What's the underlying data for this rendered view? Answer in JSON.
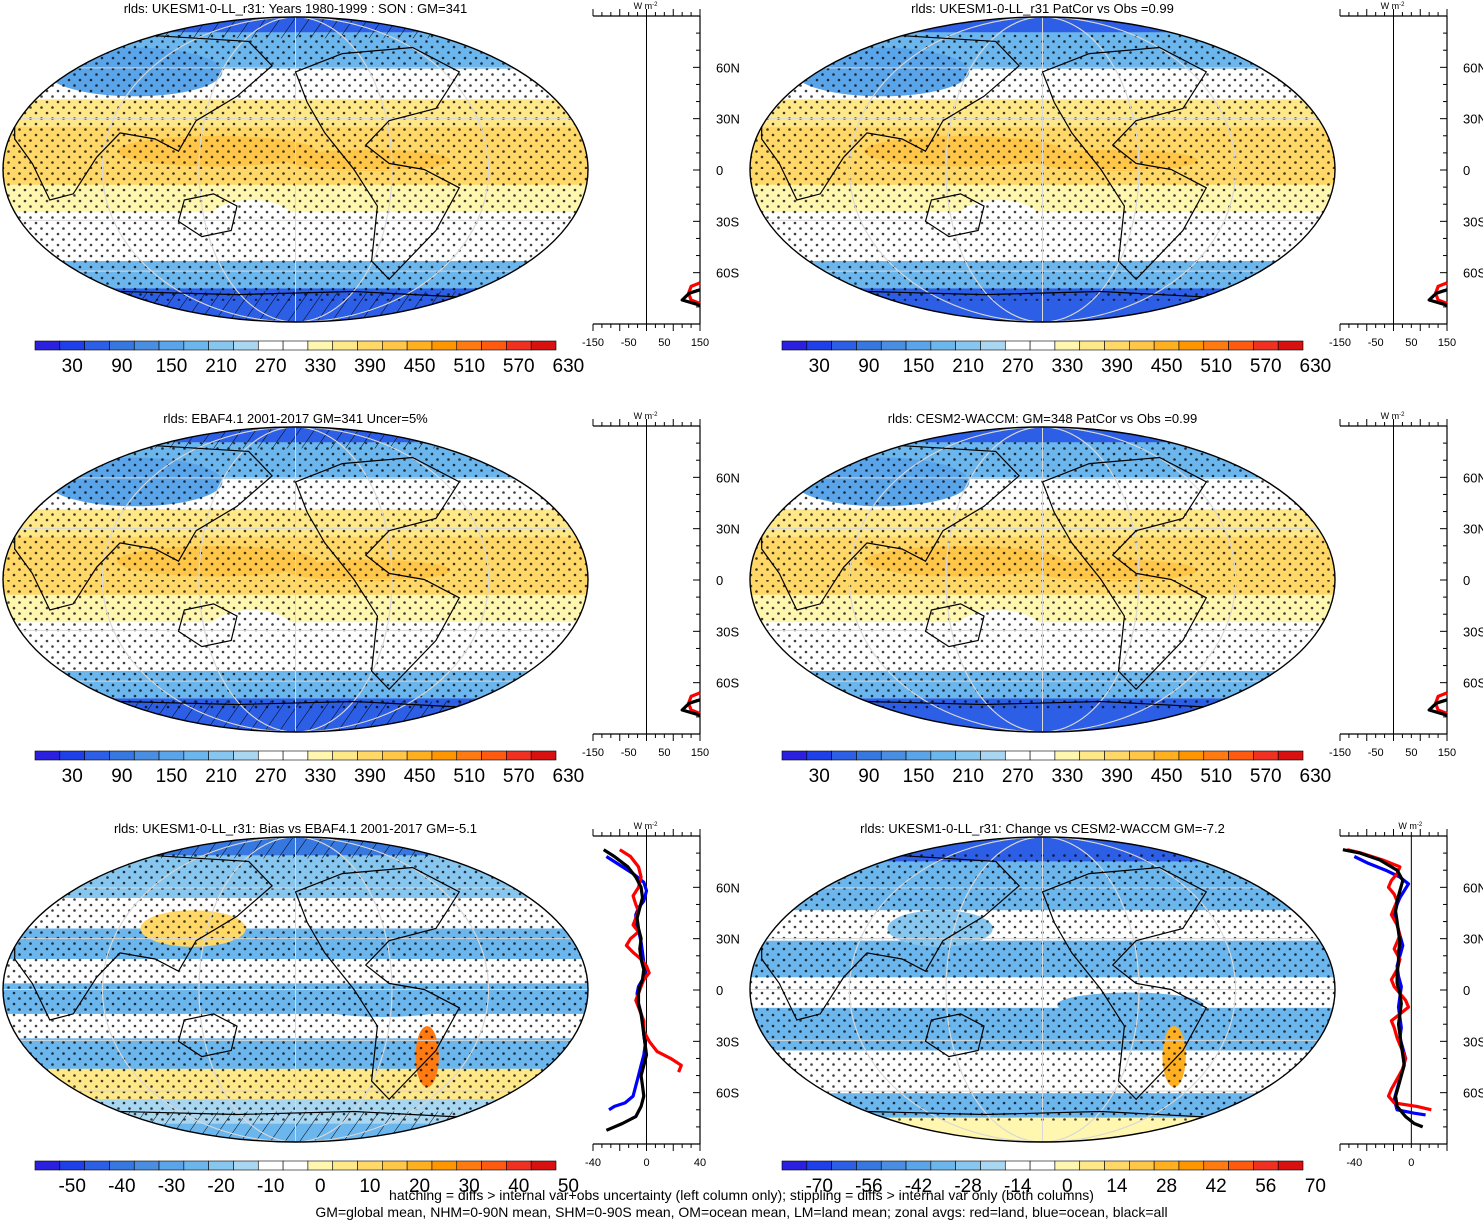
{
  "colors": {
    "full": [
      "#2b1fe0",
      "#1f3fe8",
      "#2d5fe6",
      "#3777e0",
      "#4a8ee2",
      "#5aa4ea",
      "#6cb6ee",
      "#87c6ee",
      "#a9d6f0",
      "#ffffff",
      "#ffffff",
      "#fff6b0",
      "#ffe888",
      "#ffd868",
      "#ffc648",
      "#ffb020",
      "#ff9600",
      "#ff7a10",
      "#ff5a10",
      "#f03020",
      "#d81010"
    ],
    "diff": [
      "#2b1fe0",
      "#1f3fe8",
      "#2d5fe6",
      "#3777e0",
      "#4a8ee2",
      "#5aa4ea",
      "#6cb6ee",
      "#87c6ee",
      "#a9d6f0",
      "#ffffff",
      "#ffffff",
      "#fff6b0",
      "#ffe888",
      "#ffd868",
      "#ffc648",
      "#ffb020",
      "#ff9600",
      "#ff7a10",
      "#ff5a10",
      "#f03020",
      "#d81010"
    ],
    "land": "#ff0000",
    "ocean": "#0000ff",
    "all": "#000000"
  },
  "lat_ticks": [
    "60N",
    "30N",
    "0",
    "30S",
    "60S"
  ],
  "unit_label": "W m",
  "unit_sup": "-2",
  "footnote": [
    "hatching = diffs > internal var+obs uncertainty (left column only); stippling = diffs > internal var only (both columns)",
    "GM=global mean, NHM=0-90N mean, SHM=0-90S mean, OM=ocean mean, LM=land mean; zonal avgs: red=land, blue=ocean, black=all"
  ],
  "chart_data": [
    {
      "type": "heatmap",
      "title": "rlds: UKESM1-0-LL_r31: Years 1980-1999 : SON : GM=341",
      "field": "full",
      "colorbar_labels": [
        "30",
        "90",
        "150",
        "210",
        "270",
        "330",
        "390",
        "450",
        "510",
        "570",
        "630"
      ],
      "profile_xticks": [
        "-150",
        "-50",
        "50",
        "150"
      ],
      "profile_xlim": [
        -150,
        150
      ],
      "profile_lines": [
        {
          "series": "land",
          "points": [
            [
              150,
              -66
            ],
            [
              125,
              -68
            ],
            [
              118,
              -72
            ],
            [
              125,
              -76
            ],
            [
              150,
              -78
            ]
          ]
        },
        {
          "series": "all",
          "points": [
            [
              150,
              -70
            ],
            [
              120,
              -72
            ],
            [
              100,
              -76
            ],
            [
              150,
              -79
            ]
          ]
        }
      ]
    },
    {
      "type": "heatmap",
      "title": "rlds: UKESM1-0-LL_r31 PatCor vs Obs =0.99",
      "field": "full",
      "colorbar_labels": [
        "30",
        "90",
        "150",
        "210",
        "270",
        "330",
        "390",
        "450",
        "510",
        "570",
        "630"
      ],
      "profile_xticks": [
        "-150",
        "-50",
        "50",
        "150"
      ],
      "profile_xlim": [
        -150,
        150
      ],
      "profile_lines": [
        {
          "series": "land",
          "points": [
            [
              150,
              -66
            ],
            [
              125,
              -68
            ],
            [
              118,
              -72
            ],
            [
              125,
              -76
            ],
            [
              150,
              -78
            ]
          ]
        },
        {
          "series": "all",
          "points": [
            [
              150,
              -70
            ],
            [
              120,
              -72
            ],
            [
              100,
              -76
            ],
            [
              150,
              -79
            ]
          ]
        }
      ]
    },
    {
      "type": "heatmap",
      "title": "rlds: EBAF4.1 2001-2017 GM=341 Uncer=5%",
      "field": "full",
      "colorbar_labels": [
        "30",
        "90",
        "150",
        "210",
        "270",
        "330",
        "390",
        "450",
        "510",
        "570",
        "630"
      ],
      "profile_xticks": [
        "-150",
        "-50",
        "50",
        "150"
      ],
      "profile_xlim": [
        -150,
        150
      ],
      "profile_lines": [
        {
          "series": "land",
          "points": [
            [
              150,
              -66
            ],
            [
              125,
              -68
            ],
            [
              118,
              -72
            ],
            [
              125,
              -76
            ],
            [
              150,
              -78
            ]
          ]
        },
        {
          "series": "all",
          "points": [
            [
              150,
              -70
            ],
            [
              120,
              -72
            ],
            [
              100,
              -76
            ],
            [
              150,
              -79
            ]
          ]
        }
      ]
    },
    {
      "type": "heatmap",
      "title": "rlds: CESM2-WACCM: GM=348 PatCor vs Obs =0.99",
      "field": "full",
      "colorbar_labels": [
        "30",
        "90",
        "150",
        "210",
        "270",
        "330",
        "390",
        "450",
        "510",
        "570",
        "630"
      ],
      "profile_xticks": [
        "-150",
        "-50",
        "50",
        "150"
      ],
      "profile_xlim": [
        -150,
        150
      ],
      "profile_lines": [
        {
          "series": "land",
          "points": [
            [
              150,
              -66
            ],
            [
              125,
              -68
            ],
            [
              118,
              -72
            ],
            [
              125,
              -76
            ],
            [
              150,
              -78
            ]
          ]
        },
        {
          "series": "all",
          "points": [
            [
              150,
              -70
            ],
            [
              120,
              -72
            ],
            [
              100,
              -76
            ],
            [
              150,
              -79
            ]
          ]
        }
      ]
    },
    {
      "type": "heatmap",
      "title": "rlds: UKESM1-0-LL_r31: Bias vs EBAF4.1 2001-2017  GM=-5.1",
      "field": "diff",
      "colorbar_labels": [
        "-50",
        "-40",
        "-30",
        "-20",
        "-10",
        "0",
        "10",
        "20",
        "30",
        "40",
        "50"
      ],
      "profile_xticks": [
        "-40",
        "0",
        "40"
      ],
      "profile_xlim": [
        -40,
        40
      ],
      "profile_lines": [
        {
          "series": "ocean",
          "points": [
            [
              -30,
              78
            ],
            [
              -22,
              74
            ],
            [
              -10,
              68
            ],
            [
              -2,
              63
            ],
            [
              0,
              58
            ],
            [
              -2,
              52
            ],
            [
              -6,
              48
            ],
            [
              -8,
              44
            ],
            [
              -8,
              40
            ],
            [
              -6,
              35
            ],
            [
              -4,
              28
            ],
            [
              -3,
              22
            ],
            [
              -2,
              16
            ],
            [
              -1,
              10
            ],
            [
              -3,
              6
            ],
            [
              -6,
              2
            ],
            [
              -7,
              -2
            ],
            [
              -6,
              -8
            ],
            [
              -4,
              -14
            ],
            [
              -2,
              -20
            ],
            [
              -2,
              -26
            ],
            [
              -1,
              -32
            ],
            [
              -2,
              -38
            ],
            [
              -4,
              -44
            ],
            [
              -6,
              -50
            ],
            [
              -8,
              -56
            ],
            [
              -10,
              -62
            ],
            [
              -16,
              -66
            ],
            [
              -24,
              -68
            ],
            [
              -28,
              -70
            ]
          ]
        },
        {
          "series": "land",
          "points": [
            [
              -20,
              82
            ],
            [
              -12,
              78
            ],
            [
              -6,
              72
            ],
            [
              -4,
              66
            ],
            [
              -6,
              60
            ],
            [
              -10,
              55
            ],
            [
              -8,
              50
            ],
            [
              -6,
              46
            ],
            [
              -8,
              42
            ],
            [
              -10,
              38
            ],
            [
              -6,
              34
            ],
            [
              -12,
              30
            ],
            [
              -15,
              26
            ],
            [
              -10,
              22
            ],
            [
              -4,
              18
            ],
            [
              0,
              14
            ],
            [
              2,
              10
            ],
            [
              -2,
              6
            ],
            [
              -4,
              2
            ],
            [
              -6,
              -2
            ],
            [
              -8,
              -6
            ],
            [
              -6,
              -10
            ],
            [
              -4,
              -14
            ],
            [
              -2,
              -18
            ],
            [
              -2,
              -24
            ],
            [
              2,
              -30
            ],
            [
              8,
              -36
            ],
            [
              18,
              -40
            ],
            [
              26,
              -44
            ],
            [
              24,
              -48
            ]
          ]
        },
        {
          "series": "all",
          "points": [
            [
              -32,
              82
            ],
            [
              -24,
              78
            ],
            [
              -14,
              72
            ],
            [
              -8,
              66
            ],
            [
              -4,
              60
            ],
            [
              -3,
              54
            ],
            [
              -5,
              48
            ],
            [
              -7,
              42
            ],
            [
              -6,
              36
            ],
            [
              -4,
              30
            ],
            [
              -5,
              24
            ],
            [
              -4,
              18
            ],
            [
              -2,
              12
            ],
            [
              -3,
              6
            ],
            [
              -5,
              2
            ],
            [
              -6,
              -2
            ],
            [
              -6,
              -8
            ],
            [
              -4,
              -14
            ],
            [
              -3,
              -20
            ],
            [
              -2,
              -26
            ],
            [
              -1,
              -32
            ],
            [
              0,
              -38
            ],
            [
              -2,
              -44
            ],
            [
              -4,
              -50
            ],
            [
              -3,
              -56
            ],
            [
              -2,
              -62
            ],
            [
              -4,
              -68
            ],
            [
              -8,
              -74
            ],
            [
              -18,
              -78
            ],
            [
              -30,
              -82
            ]
          ]
        }
      ]
    },
    {
      "type": "heatmap",
      "title": "rlds: UKESM1-0-LL_r31: Change vs CESM2-WACCM GM=-7.2",
      "field": "diff",
      "colorbar_labels": [
        "-70",
        "-56",
        "-42",
        "-28",
        "-14",
        "0",
        "14",
        "28",
        "42",
        "56",
        "70"
      ],
      "profile_xticks": [
        "-40",
        "0"
      ],
      "profile_xlim": [
        -50,
        25
      ],
      "profile_lines": [
        {
          "series": "ocean",
          "points": [
            [
              -40,
              78
            ],
            [
              -30,
              74
            ],
            [
              -18,
              70
            ],
            [
              -8,
              66
            ],
            [
              -2,
              62
            ],
            [
              -5,
              58
            ],
            [
              -8,
              54
            ],
            [
              -10,
              50
            ],
            [
              -12,
              44
            ],
            [
              -10,
              38
            ],
            [
              -8,
              32
            ],
            [
              -6,
              26
            ],
            [
              -8,
              20
            ],
            [
              -10,
              14
            ],
            [
              -9,
              8
            ],
            [
              -7,
              2
            ],
            [
              -8,
              -4
            ],
            [
              -9,
              -10
            ],
            [
              -8,
              -16
            ],
            [
              -7,
              -22
            ],
            [
              -8,
              -28
            ],
            [
              -6,
              -34
            ],
            [
              -4,
              -40
            ],
            [
              -6,
              -46
            ],
            [
              -8,
              -52
            ],
            [
              -10,
              -58
            ],
            [
              -12,
              -64
            ],
            [
              -10,
              -70
            ],
            [
              2,
              -72
            ],
            [
              10,
              -73
            ]
          ]
        },
        {
          "series": "land",
          "points": [
            [
              -45,
              82
            ],
            [
              -35,
              80
            ],
            [
              -20,
              76
            ],
            [
              -8,
              72
            ],
            [
              -10,
              68
            ],
            [
              -14,
              64
            ],
            [
              -16,
              60
            ],
            [
              -12,
              56
            ],
            [
              -10,
              52
            ],
            [
              -12,
              48
            ],
            [
              -14,
              44
            ],
            [
              -10,
              38
            ],
            [
              -8,
              32
            ],
            [
              -10,
              28
            ],
            [
              -12,
              24
            ],
            [
              -8,
              18
            ],
            [
              -10,
              12
            ],
            [
              -14,
              6
            ],
            [
              -12,
              2
            ],
            [
              -8,
              -2
            ],
            [
              -4,
              -6
            ],
            [
              -2,
              -10
            ],
            [
              -8,
              -14
            ],
            [
              -14,
              -18
            ],
            [
              -12,
              -22
            ],
            [
              -10,
              -28
            ],
            [
              -8,
              -32
            ],
            [
              -6,
              -36
            ],
            [
              -4,
              -40
            ],
            [
              -6,
              -46
            ],
            [
              -10,
              -52
            ],
            [
              -14,
              -58
            ],
            [
              -16,
              -62
            ],
            [
              -12,
              -66
            ],
            [
              4,
              -68
            ],
            [
              14,
              -70
            ]
          ]
        },
        {
          "series": "all",
          "points": [
            [
              -48,
              82
            ],
            [
              -36,
              80
            ],
            [
              -22,
              76
            ],
            [
              -10,
              70
            ],
            [
              -6,
              64
            ],
            [
              -8,
              58
            ],
            [
              -10,
              52
            ],
            [
              -11,
              46
            ],
            [
              -10,
              40
            ],
            [
              -9,
              34
            ],
            [
              -8,
              28
            ],
            [
              -9,
              22
            ],
            [
              -9,
              16
            ],
            [
              -10,
              10
            ],
            [
              -10,
              4
            ],
            [
              -8,
              -2
            ],
            [
              -7,
              -8
            ],
            [
              -8,
              -14
            ],
            [
              -9,
              -20
            ],
            [
              -8,
              -26
            ],
            [
              -7,
              -32
            ],
            [
              -6,
              -38
            ],
            [
              -5,
              -44
            ],
            [
              -7,
              -50
            ],
            [
              -9,
              -56
            ],
            [
              -11,
              -62
            ],
            [
              -10,
              -68
            ],
            [
              -4,
              -74
            ],
            [
              2,
              -78
            ],
            [
              8,
              -80
            ]
          ]
        }
      ]
    }
  ]
}
